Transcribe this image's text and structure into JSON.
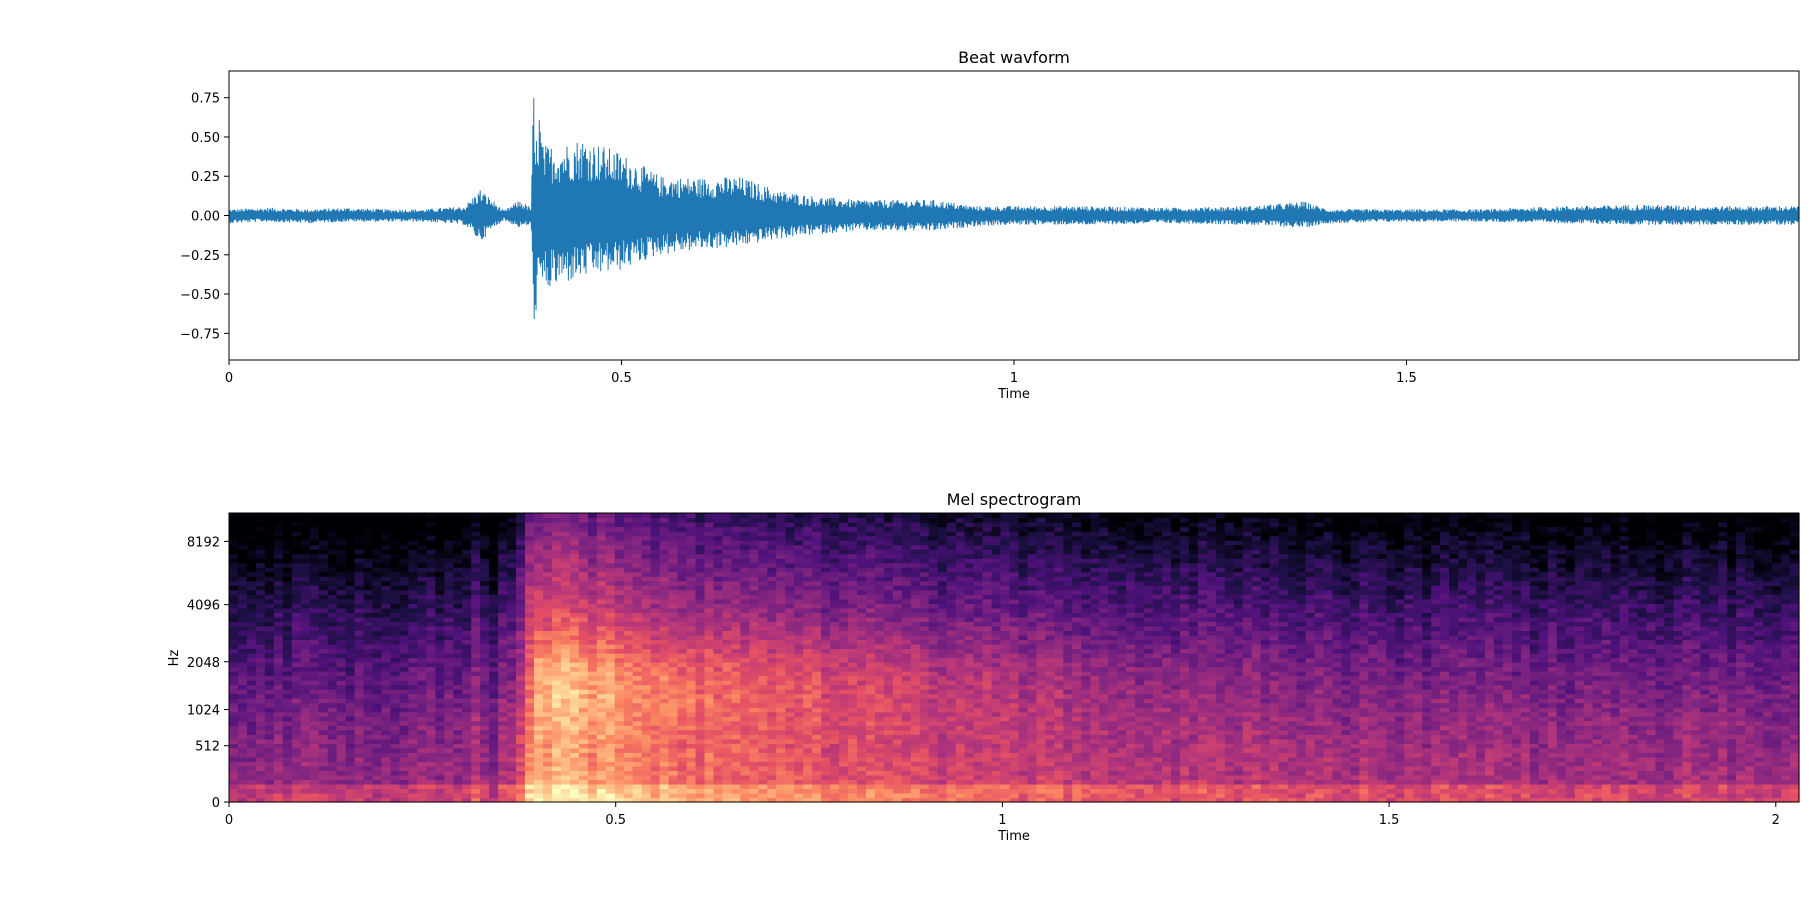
{
  "chart_data": [
    {
      "type": "line",
      "title": "Beat wavform",
      "xlabel": "Time",
      "ylabel": "",
      "xlim": [
        0,
        2.0
      ],
      "ylim": [
        -0.92,
        0.92
      ],
      "xticks": [
        0,
        0.5,
        1,
        1.5
      ],
      "xtick_labels": [
        "0",
        "0.5",
        "1",
        "1.5"
      ],
      "yticks": [
        0.75,
        0.5,
        0.25,
        0.0,
        -0.25,
        -0.5,
        -0.75
      ],
      "ytick_labels": [
        "0.75",
        "0.50",
        "0.25",
        "0.00",
        "−0.25",
        "−0.50",
        "−0.75"
      ],
      "grid": false,
      "series": [
        {
          "color": "#1f77b4",
          "envelope": {
            "time": [
              0.0,
              0.05,
              0.1,
              0.15,
              0.2,
              0.25,
              0.3,
              0.32,
              0.34,
              0.35,
              0.37,
              0.385,
              0.388,
              0.39,
              0.395,
              0.4,
              0.42,
              0.45,
              0.5,
              0.55,
              0.6,
              0.65,
              0.7,
              0.75,
              0.8,
              0.85,
              0.9,
              0.95,
              1.0,
              1.1,
              1.2,
              1.3,
              1.37,
              1.4,
              1.5,
              1.6,
              1.7,
              1.8,
              1.9,
              2.0
            ],
            "upper": [
              0.04,
              0.05,
              0.04,
              0.05,
              0.04,
              0.04,
              0.06,
              0.17,
              0.08,
              0.03,
              0.1,
              0.05,
              0.85,
              0.4,
              0.7,
              0.45,
              0.45,
              0.5,
              0.4,
              0.25,
              0.24,
              0.25,
              0.16,
              0.12,
              0.1,
              0.1,
              0.1,
              0.06,
              0.06,
              0.06,
              0.05,
              0.06,
              0.09,
              0.04,
              0.04,
              0.04,
              0.06,
              0.07,
              0.06,
              0.06
            ],
            "lower": [
              -0.05,
              -0.04,
              -0.05,
              -0.04,
              -0.04,
              -0.04,
              -0.06,
              -0.17,
              -0.07,
              -0.03,
              -0.08,
              -0.06,
              -0.85,
              -0.65,
              -0.5,
              -0.5,
              -0.45,
              -0.4,
              -0.35,
              -0.25,
              -0.22,
              -0.2,
              -0.15,
              -0.12,
              -0.1,
              -0.1,
              -0.1,
              -0.07,
              -0.06,
              -0.06,
              -0.05,
              -0.06,
              -0.08,
              -0.05,
              -0.04,
              -0.04,
              -0.05,
              -0.06,
              -0.06,
              -0.06
            ]
          }
        }
      ]
    },
    {
      "type": "heatmap",
      "title": "Mel spectrogram",
      "xlabel": "Time",
      "ylabel": "Hz",
      "xlim": [
        0,
        2.03
      ],
      "y_scale": "mel",
      "ylim": [
        0,
        11025
      ],
      "xticks": [
        0,
        0.5,
        1,
        1.5,
        2
      ],
      "xtick_labels": [
        "0",
        "0.5",
        "1",
        "1.5",
        "2"
      ],
      "yticks": [
        0,
        512,
        1024,
        2048,
        4096,
        8192
      ],
      "ytick_labels": [
        "0",
        "512",
        "1024",
        "2048",
        "4096",
        "8192"
      ],
      "colormap": "magma",
      "grid": false,
      "onset_time": 0.39,
      "energy_profile": {
        "time": [
          0.0,
          0.3,
          0.32,
          0.34,
          0.37,
          0.39,
          0.45,
          0.6,
          0.8,
          1.0,
          1.2,
          1.5,
          1.8,
          2.03
        ],
        "level": [
          0.42,
          0.42,
          0.52,
          0.42,
          0.55,
          0.86,
          0.82,
          0.7,
          0.62,
          0.56,
          0.52,
          0.48,
          0.46,
          0.45
        ]
      }
    }
  ]
}
